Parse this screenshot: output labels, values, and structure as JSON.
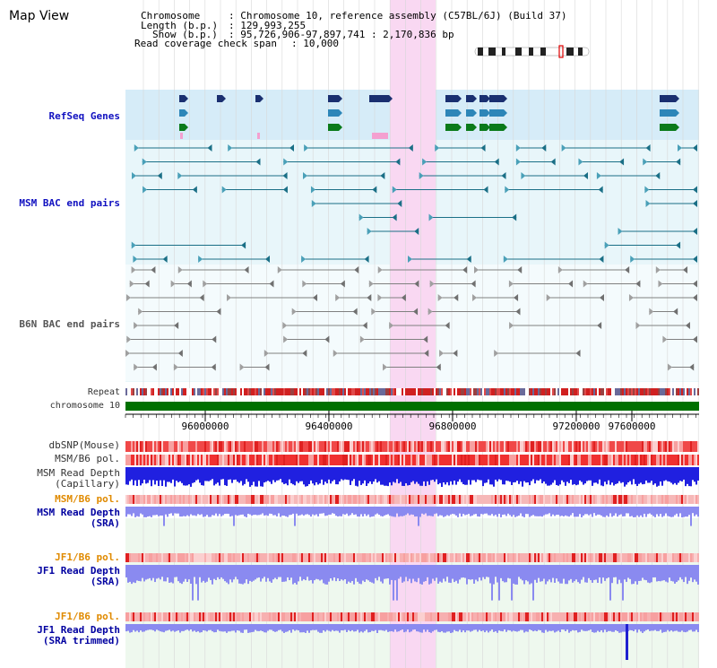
{
  "title": "Map View",
  "info": {
    "chromosome_key": "Chromosome",
    "chromosome_val": ": Chromosome 10, reference assembly (C57BL/6J) (Build 37)",
    "length_key": "Length (b.p.)",
    "length_val": ": 129,993,255",
    "show_key": "Show (b.p.)",
    "show_val": ": 95,726,906-97,897,741 : 2,170,836 bp",
    "span_key": "Read coverage check span",
    "span_val": ": 10,000"
  },
  "tracks": {
    "refseq": "RefSeq Genes",
    "msm_bac": "MSM BAC end pairs",
    "b6n_bac": "B6N BAC end pairs",
    "repeat": "Repeat",
    "chromosome": "chromosome 10",
    "dbsnp": "dbSNP(Mouse)",
    "msm_pol": "MSM/B6 pol.",
    "msm_depth_cap_1": "MSM Read Depth",
    "msm_depth_cap_2": "(Capillary)",
    "msm_pol2": "MSM/B6 pol.",
    "msm_depth_sra_1": "MSM Read Depth",
    "msm_depth_sra_2": "(SRA)",
    "jf1_pol": "JF1/B6 pol.",
    "jf1_depth_1": "JF1 Read Depth",
    "jf1_depth_2": "(SRA)",
    "jf1_pol2": "JF1/B6 pol.",
    "jf1_trim_1": "JF1 Read Depth",
    "jf1_trim_2": "(SRA trimmed)"
  },
  "axis": {
    "ticks": [
      "96000000",
      "96400000",
      "96800000",
      "97200000",
      "97600000"
    ]
  },
  "colors": {
    "refseq_bg": "#d6ecf8",
    "bac_bg": "#e8f6fa",
    "highlight": "#f9d8f2",
    "msm_feature": "#1a6f86",
    "b6n_feature": "#808080",
    "chromosome_bar": "#007000",
    "depth_blue": "#2020e0",
    "depth_light": "#8a8af0",
    "pol_red": "#f04848",
    "lower_bg": "#eef8ee"
  },
  "icons": {
    "karyotype": "chromosome-ideogram-icon"
  }
}
